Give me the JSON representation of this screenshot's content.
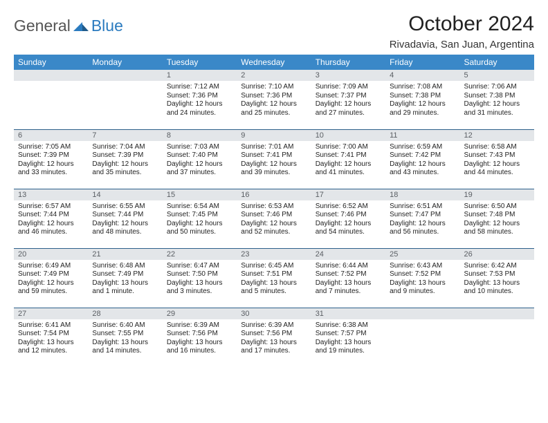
{
  "brand": {
    "part1": "General",
    "part2": "Blue"
  },
  "title": "October 2024",
  "location": "Rivadavia, San Juan, Argentina",
  "colors": {
    "header_bg": "#3a88c8",
    "header_text": "#ffffff",
    "daynum_bg": "#e3e6e9",
    "daynum_text": "#5a5e63",
    "cell_border": "#2b5f8a",
    "brand_gray": "#555555",
    "brand_blue": "#2b7bbf",
    "body_text": "#222222",
    "background": "#ffffff"
  },
  "typography": {
    "month_title_fontsize": 30,
    "location_fontsize": 15,
    "weekday_fontsize": 12,
    "daynum_fontsize": 11,
    "cell_fontsize": 10
  },
  "weekdays": [
    "Sunday",
    "Monday",
    "Tuesday",
    "Wednesday",
    "Thursday",
    "Friday",
    "Saturday"
  ],
  "weeks": [
    [
      null,
      null,
      {
        "n": "1",
        "sunrise": "Sunrise: 7:12 AM",
        "sunset": "Sunset: 7:36 PM",
        "daylight": "Daylight: 12 hours and 24 minutes."
      },
      {
        "n": "2",
        "sunrise": "Sunrise: 7:10 AM",
        "sunset": "Sunset: 7:36 PM",
        "daylight": "Daylight: 12 hours and 25 minutes."
      },
      {
        "n": "3",
        "sunrise": "Sunrise: 7:09 AM",
        "sunset": "Sunset: 7:37 PM",
        "daylight": "Daylight: 12 hours and 27 minutes."
      },
      {
        "n": "4",
        "sunrise": "Sunrise: 7:08 AM",
        "sunset": "Sunset: 7:38 PM",
        "daylight": "Daylight: 12 hours and 29 minutes."
      },
      {
        "n": "5",
        "sunrise": "Sunrise: 7:06 AM",
        "sunset": "Sunset: 7:38 PM",
        "daylight": "Daylight: 12 hours and 31 minutes."
      }
    ],
    [
      {
        "n": "6",
        "sunrise": "Sunrise: 7:05 AM",
        "sunset": "Sunset: 7:39 PM",
        "daylight": "Daylight: 12 hours and 33 minutes."
      },
      {
        "n": "7",
        "sunrise": "Sunrise: 7:04 AM",
        "sunset": "Sunset: 7:39 PM",
        "daylight": "Daylight: 12 hours and 35 minutes."
      },
      {
        "n": "8",
        "sunrise": "Sunrise: 7:03 AM",
        "sunset": "Sunset: 7:40 PM",
        "daylight": "Daylight: 12 hours and 37 minutes."
      },
      {
        "n": "9",
        "sunrise": "Sunrise: 7:01 AM",
        "sunset": "Sunset: 7:41 PM",
        "daylight": "Daylight: 12 hours and 39 minutes."
      },
      {
        "n": "10",
        "sunrise": "Sunrise: 7:00 AM",
        "sunset": "Sunset: 7:41 PM",
        "daylight": "Daylight: 12 hours and 41 minutes."
      },
      {
        "n": "11",
        "sunrise": "Sunrise: 6:59 AM",
        "sunset": "Sunset: 7:42 PM",
        "daylight": "Daylight: 12 hours and 43 minutes."
      },
      {
        "n": "12",
        "sunrise": "Sunrise: 6:58 AM",
        "sunset": "Sunset: 7:43 PM",
        "daylight": "Daylight: 12 hours and 44 minutes."
      }
    ],
    [
      {
        "n": "13",
        "sunrise": "Sunrise: 6:57 AM",
        "sunset": "Sunset: 7:44 PM",
        "daylight": "Daylight: 12 hours and 46 minutes."
      },
      {
        "n": "14",
        "sunrise": "Sunrise: 6:55 AM",
        "sunset": "Sunset: 7:44 PM",
        "daylight": "Daylight: 12 hours and 48 minutes."
      },
      {
        "n": "15",
        "sunrise": "Sunrise: 6:54 AM",
        "sunset": "Sunset: 7:45 PM",
        "daylight": "Daylight: 12 hours and 50 minutes."
      },
      {
        "n": "16",
        "sunrise": "Sunrise: 6:53 AM",
        "sunset": "Sunset: 7:46 PM",
        "daylight": "Daylight: 12 hours and 52 minutes."
      },
      {
        "n": "17",
        "sunrise": "Sunrise: 6:52 AM",
        "sunset": "Sunset: 7:46 PM",
        "daylight": "Daylight: 12 hours and 54 minutes."
      },
      {
        "n": "18",
        "sunrise": "Sunrise: 6:51 AM",
        "sunset": "Sunset: 7:47 PM",
        "daylight": "Daylight: 12 hours and 56 minutes."
      },
      {
        "n": "19",
        "sunrise": "Sunrise: 6:50 AM",
        "sunset": "Sunset: 7:48 PM",
        "daylight": "Daylight: 12 hours and 58 minutes."
      }
    ],
    [
      {
        "n": "20",
        "sunrise": "Sunrise: 6:49 AM",
        "sunset": "Sunset: 7:49 PM",
        "daylight": "Daylight: 12 hours and 59 minutes."
      },
      {
        "n": "21",
        "sunrise": "Sunrise: 6:48 AM",
        "sunset": "Sunset: 7:49 PM",
        "daylight": "Daylight: 13 hours and 1 minute."
      },
      {
        "n": "22",
        "sunrise": "Sunrise: 6:47 AM",
        "sunset": "Sunset: 7:50 PM",
        "daylight": "Daylight: 13 hours and 3 minutes."
      },
      {
        "n": "23",
        "sunrise": "Sunrise: 6:45 AM",
        "sunset": "Sunset: 7:51 PM",
        "daylight": "Daylight: 13 hours and 5 minutes."
      },
      {
        "n": "24",
        "sunrise": "Sunrise: 6:44 AM",
        "sunset": "Sunset: 7:52 PM",
        "daylight": "Daylight: 13 hours and 7 minutes."
      },
      {
        "n": "25",
        "sunrise": "Sunrise: 6:43 AM",
        "sunset": "Sunset: 7:52 PM",
        "daylight": "Daylight: 13 hours and 9 minutes."
      },
      {
        "n": "26",
        "sunrise": "Sunrise: 6:42 AM",
        "sunset": "Sunset: 7:53 PM",
        "daylight": "Daylight: 13 hours and 10 minutes."
      }
    ],
    [
      {
        "n": "27",
        "sunrise": "Sunrise: 6:41 AM",
        "sunset": "Sunset: 7:54 PM",
        "daylight": "Daylight: 13 hours and 12 minutes."
      },
      {
        "n": "28",
        "sunrise": "Sunrise: 6:40 AM",
        "sunset": "Sunset: 7:55 PM",
        "daylight": "Daylight: 13 hours and 14 minutes."
      },
      {
        "n": "29",
        "sunrise": "Sunrise: 6:39 AM",
        "sunset": "Sunset: 7:56 PM",
        "daylight": "Daylight: 13 hours and 16 minutes."
      },
      {
        "n": "30",
        "sunrise": "Sunrise: 6:39 AM",
        "sunset": "Sunset: 7:56 PM",
        "daylight": "Daylight: 13 hours and 17 minutes."
      },
      {
        "n": "31",
        "sunrise": "Sunrise: 6:38 AM",
        "sunset": "Sunset: 7:57 PM",
        "daylight": "Daylight: 13 hours and 19 minutes."
      },
      null,
      null
    ]
  ]
}
